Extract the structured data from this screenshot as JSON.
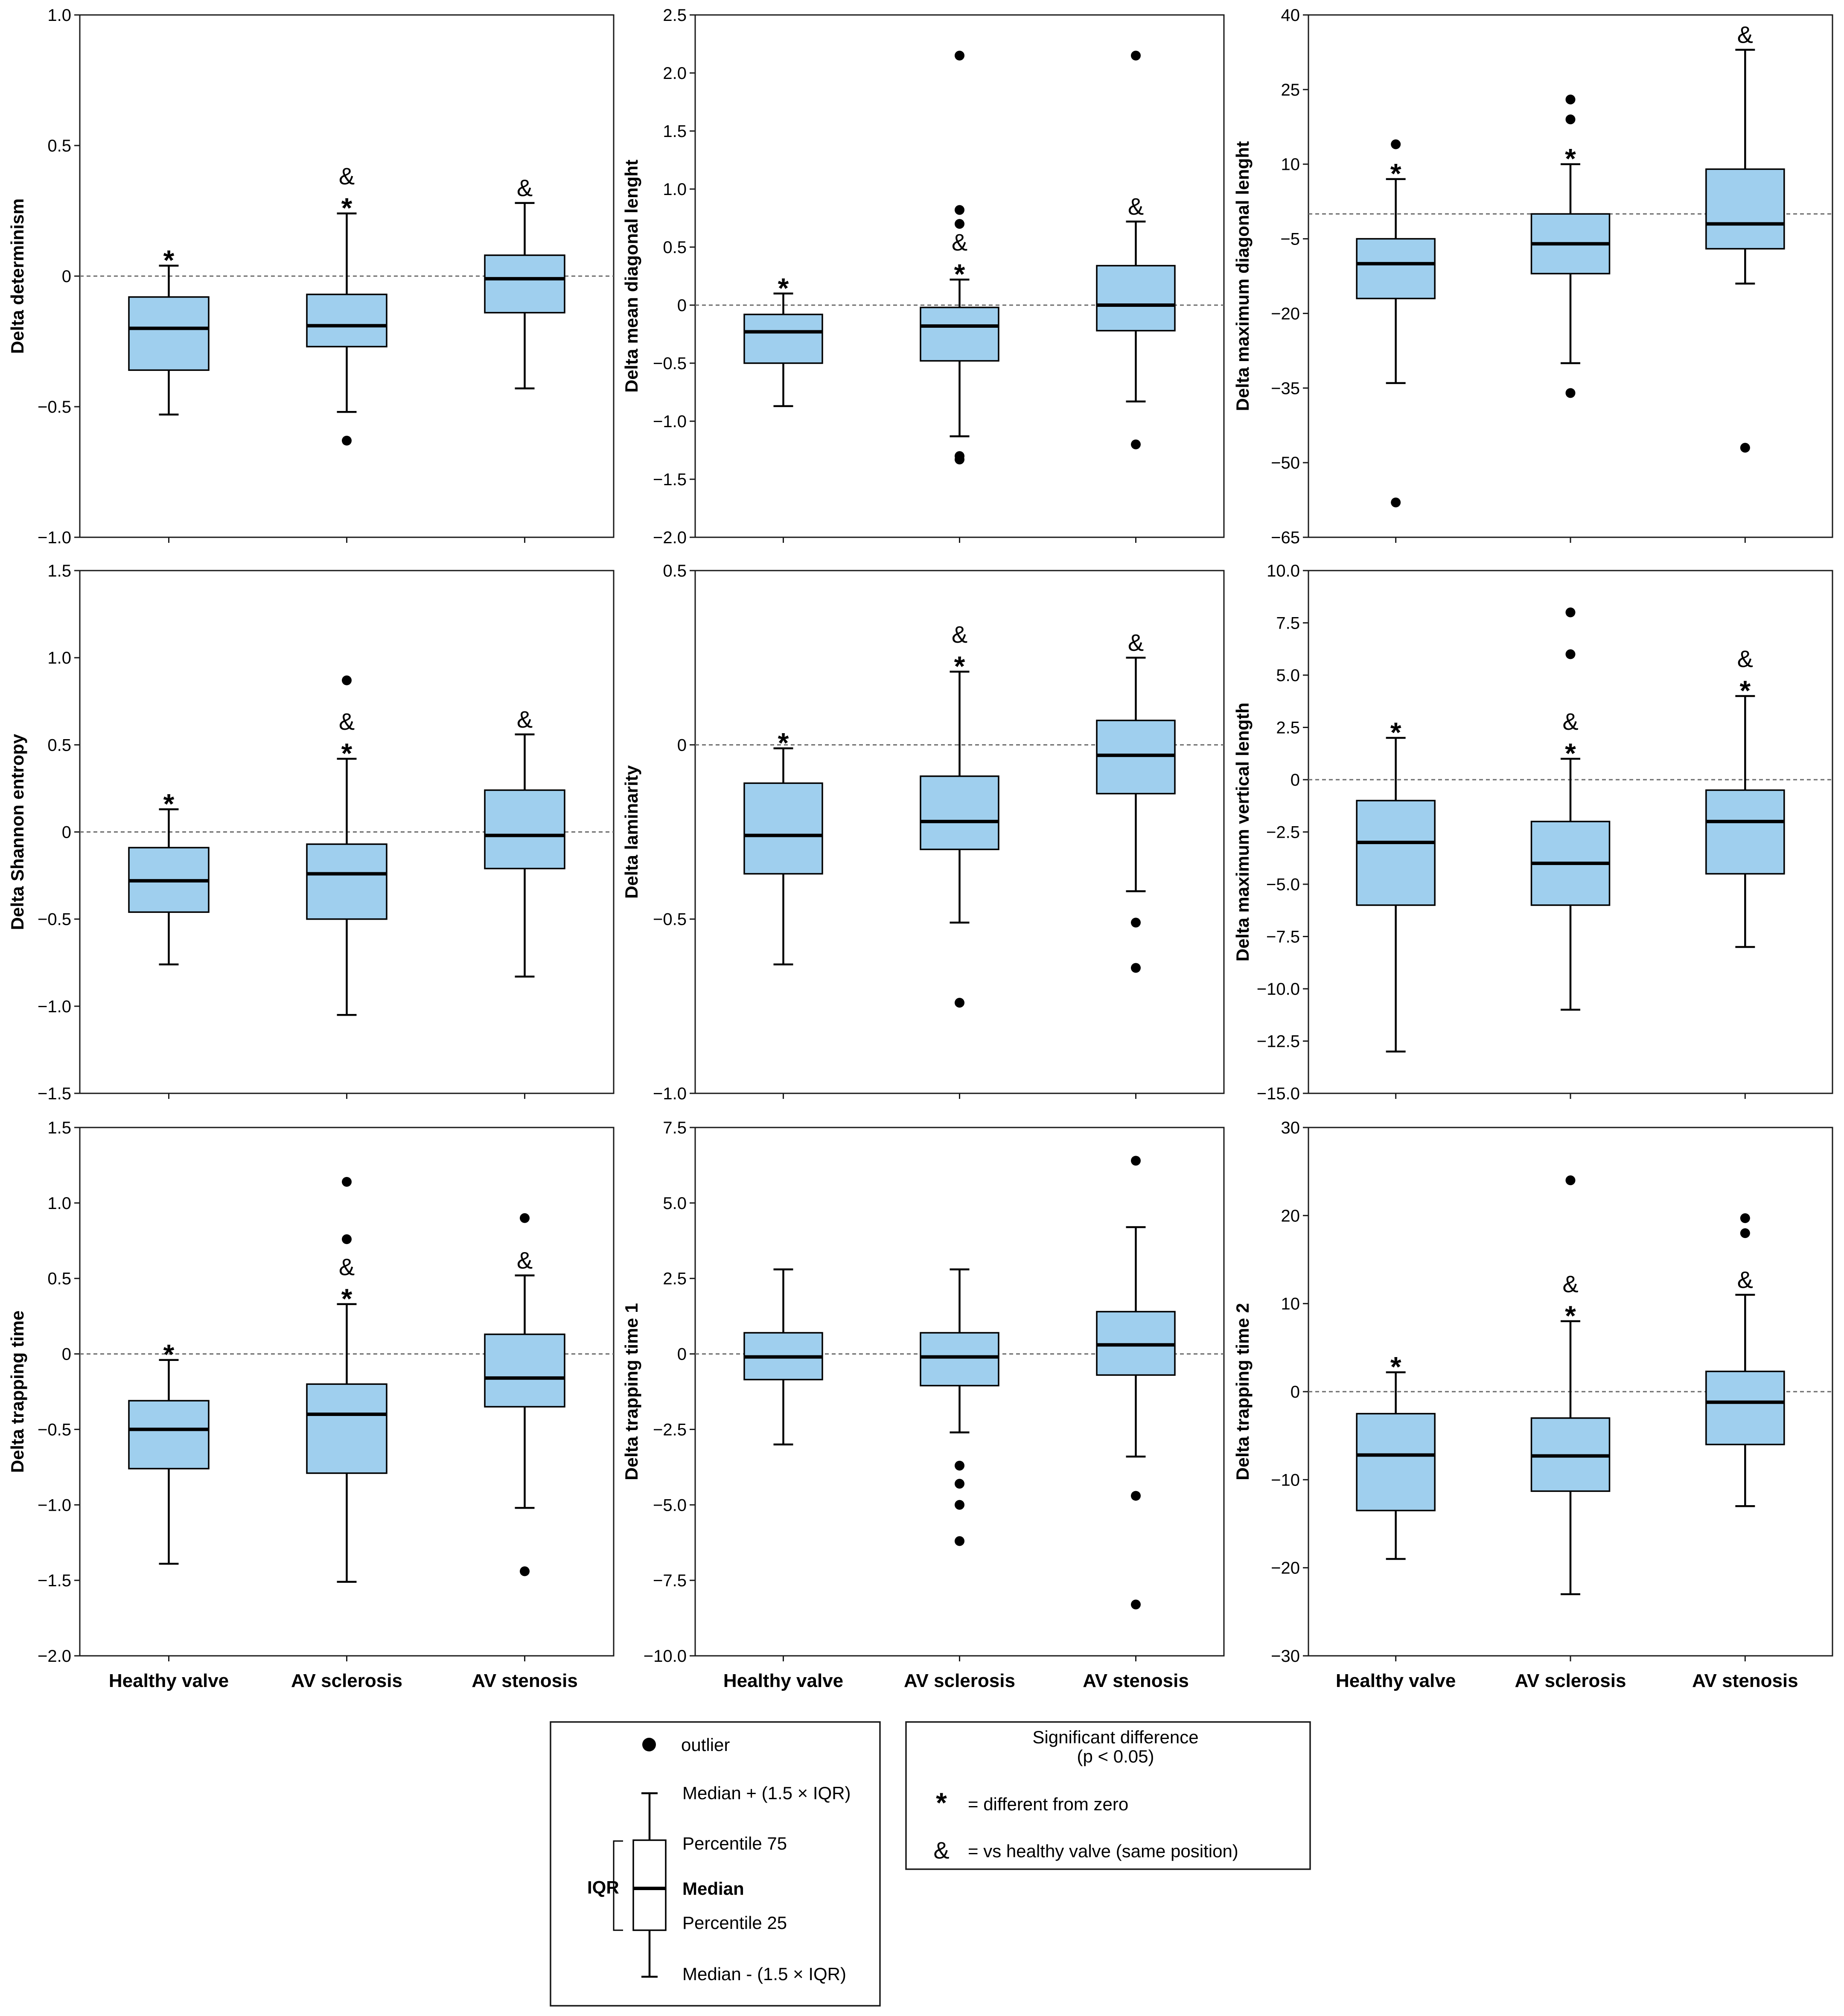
{
  "chart_data": [
    {
      "type": "boxplot",
      "ylabel": "Delta determinism",
      "ylim": [
        -1.0,
        1.0
      ],
      "yticks": [
        -1.0,
        -0.5,
        0,
        0.5,
        1.0
      ],
      "ytick_labels": [
        "−1.0",
        "−0.5",
        "0",
        "0.5",
        "1.0"
      ],
      "categories": [
        "Healthy valve",
        "AV sclerosis",
        "AV stenosis"
      ],
      "series": [
        {
          "name": "Healthy valve",
          "whisker_low": -0.53,
          "q1": -0.36,
          "median": -0.2,
          "q3": -0.08,
          "whisker_high": 0.04,
          "outliers": [],
          "different_from_zero": true,
          "vs_healthy": false
        },
        {
          "name": "AV sclerosis",
          "whisker_low": -0.52,
          "q1": -0.27,
          "median": -0.19,
          "q3": -0.07,
          "whisker_high": 0.24,
          "outliers": [
            -0.63
          ],
          "different_from_zero": true,
          "vs_healthy": true
        },
        {
          "name": "AV stenosis",
          "whisker_low": -0.43,
          "q1": -0.14,
          "median": -0.01,
          "q3": 0.08,
          "whisker_high": 0.28,
          "outliers": [],
          "different_from_zero": false,
          "vs_healthy": true
        }
      ]
    },
    {
      "type": "boxplot",
      "ylabel": "Delta mean diagonal lenght",
      "ylim": [
        -2.0,
        2.5
      ],
      "yticks": [
        -2.0,
        -1.5,
        -1.0,
        -0.5,
        0,
        0.5,
        1.0,
        1.5,
        2.0,
        2.5
      ],
      "ytick_labels": [
        "−2.0",
        "−1.5",
        "−1.0",
        "−0.5",
        "0",
        "0.5",
        "1.0",
        "1.5",
        "2.0",
        "2.5"
      ],
      "categories": [
        "Healthy valve",
        "AV sclerosis",
        "AV stenosis"
      ],
      "series": [
        {
          "name": "Healthy valve",
          "whisker_low": -0.87,
          "q1": -0.5,
          "median": -0.23,
          "q3": -0.08,
          "whisker_high": 0.1,
          "outliers": [],
          "different_from_zero": true,
          "vs_healthy": false
        },
        {
          "name": "AV sclerosis",
          "whisker_low": -1.13,
          "q1": -0.48,
          "median": -0.18,
          "q3": -0.02,
          "whisker_high": 0.22,
          "outliers": [
            -1.3,
            -1.33,
            0.7,
            0.82,
            2.15
          ],
          "different_from_zero": true,
          "vs_healthy": true
        },
        {
          "name": "AV stenosis",
          "whisker_low": -0.83,
          "q1": -0.22,
          "median": 0.0,
          "q3": 0.34,
          "whisker_high": 0.72,
          "outliers": [
            -1.2,
            2.15
          ],
          "different_from_zero": false,
          "vs_healthy": true
        }
      ]
    },
    {
      "type": "boxplot",
      "ylabel": "Delta maximum diagonal lenght",
      "ylim": [
        -65,
        40
      ],
      "yticks": [
        -65,
        -50,
        -35,
        -20,
        -5,
        10,
        25,
        40
      ],
      "ytick_labels": [
        "−65",
        "−50",
        "−35",
        "−20",
        "−5",
        "10",
        "25",
        "40"
      ],
      "categories": [
        "Healthy valve",
        "AV sclerosis",
        "AV stenosis"
      ],
      "series": [
        {
          "name": "Healthy valve",
          "whisker_low": -34,
          "q1": -17,
          "median": -10,
          "q3": -5,
          "whisker_high": 7,
          "outliers": [
            14,
            -58
          ],
          "different_from_zero": true,
          "vs_healthy": false
        },
        {
          "name": "AV sclerosis",
          "whisker_low": -30,
          "q1": -12,
          "median": -6,
          "q3": 0,
          "whisker_high": 10,
          "outliers": [
            19,
            23,
            -36
          ],
          "different_from_zero": true,
          "vs_healthy": false
        },
        {
          "name": "AV stenosis",
          "whisker_low": -14,
          "q1": -7,
          "median": -2,
          "q3": 9,
          "whisker_high": 33,
          "outliers": [
            -47
          ],
          "different_from_zero": false,
          "vs_healthy": true
        }
      ]
    },
    {
      "type": "boxplot",
      "ylabel": "Delta Shannon entropy",
      "ylim": [
        -1.5,
        1.5
      ],
      "yticks": [
        -1.5,
        -1.0,
        -0.5,
        0,
        0.5,
        1.0,
        1.5
      ],
      "ytick_labels": [
        "−1.5",
        "−1.0",
        "−0.5",
        "0",
        "0.5",
        "1.0",
        "1.5"
      ],
      "categories": [
        "Healthy valve",
        "AV sclerosis",
        "AV stenosis"
      ],
      "series": [
        {
          "name": "Healthy valve",
          "whisker_low": -0.76,
          "q1": -0.46,
          "median": -0.28,
          "q3": -0.09,
          "whisker_high": 0.13,
          "outliers": [],
          "different_from_zero": true,
          "vs_healthy": false
        },
        {
          "name": "AV sclerosis",
          "whisker_low": -1.05,
          "q1": -0.5,
          "median": -0.24,
          "q3": -0.07,
          "whisker_high": 0.42,
          "outliers": [
            0.87
          ],
          "different_from_zero": true,
          "vs_healthy": true
        },
        {
          "name": "AV stenosis",
          "whisker_low": -0.83,
          "q1": -0.21,
          "median": -0.02,
          "q3": 0.24,
          "whisker_high": 0.56,
          "outliers": [],
          "different_from_zero": false,
          "vs_healthy": true
        }
      ]
    },
    {
      "type": "boxplot",
      "ylabel": "Delta laminarity",
      "ylim": [
        -1.0,
        0.5
      ],
      "yticks": [
        -1.0,
        -0.5,
        0,
        0.5
      ],
      "ytick_labels": [
        "−1.0",
        "−0.5",
        "0",
        "0.5"
      ],
      "categories": [
        "Healthy valve",
        "AV sclerosis",
        "AV stenosis"
      ],
      "series": [
        {
          "name": "Healthy valve",
          "whisker_low": -0.63,
          "q1": -0.37,
          "median": -0.26,
          "q3": -0.11,
          "whisker_high": -0.01,
          "outliers": [],
          "different_from_zero": true,
          "vs_healthy": false
        },
        {
          "name": "AV sclerosis",
          "whisker_low": -0.51,
          "q1": -0.3,
          "median": -0.22,
          "q3": -0.09,
          "whisker_high": 0.21,
          "outliers": [
            -0.74
          ],
          "different_from_zero": true,
          "vs_healthy": true
        },
        {
          "name": "AV stenosis",
          "whisker_low": -0.42,
          "q1": -0.14,
          "median": -0.03,
          "q3": 0.07,
          "whisker_high": 0.25,
          "outliers": [
            -0.51,
            -0.64
          ],
          "different_from_zero": false,
          "vs_healthy": true
        }
      ]
    },
    {
      "type": "boxplot",
      "ylabel": "Delta maximum vertical length",
      "ylim": [
        -15.0,
        10.0
      ],
      "yticks": [
        -15.0,
        -12.5,
        -10.0,
        -7.5,
        -5.0,
        -2.5,
        0,
        2.5,
        5.0,
        7.5,
        10.0
      ],
      "ytick_labels": [
        "−15.0",
        "−12.5",
        "−10.0",
        "−7.5",
        "−5.0",
        "−2.5",
        "0",
        "2.5",
        "5.0",
        "7.5",
        "10.0"
      ],
      "categories": [
        "Healthy valve",
        "AV sclerosis",
        "AV stenosis"
      ],
      "series": [
        {
          "name": "Healthy valve",
          "whisker_low": -13,
          "q1": -6,
          "median": -3,
          "q3": -1,
          "whisker_high": 2,
          "outliers": [],
          "different_from_zero": true,
          "vs_healthy": false
        },
        {
          "name": "AV sclerosis",
          "whisker_low": -11,
          "q1": -6,
          "median": -4,
          "q3": -2,
          "whisker_high": 1,
          "outliers": [
            6,
            8
          ],
          "different_from_zero": true,
          "vs_healthy": true
        },
        {
          "name": "AV stenosis",
          "whisker_low": -8,
          "q1": -4.5,
          "median": -2,
          "q3": -0.5,
          "whisker_high": 4,
          "outliers": [],
          "different_from_zero": true,
          "vs_healthy": true
        }
      ]
    },
    {
      "type": "boxplot",
      "ylabel": "Delta trapping time",
      "ylim": [
        -2.0,
        1.5
      ],
      "yticks": [
        -2.0,
        -1.5,
        -1.0,
        -0.5,
        0,
        0.5,
        1.0,
        1.5
      ],
      "ytick_labels": [
        "−2.0",
        "−1.5",
        "−1.0",
        "−0.5",
        "0",
        "0.5",
        "1.0",
        "1.5"
      ],
      "categories": [
        "Healthy valve",
        "AV sclerosis",
        "AV stenosis"
      ],
      "series": [
        {
          "name": "Healthy valve",
          "whisker_low": -1.39,
          "q1": -0.76,
          "median": -0.5,
          "q3": -0.31,
          "whisker_high": -0.04,
          "outliers": [],
          "different_from_zero": true,
          "vs_healthy": false
        },
        {
          "name": "AV sclerosis",
          "whisker_low": -1.51,
          "q1": -0.79,
          "median": -0.4,
          "q3": -0.2,
          "whisker_high": 0.33,
          "outliers": [
            0.76,
            1.14
          ],
          "different_from_zero": true,
          "vs_healthy": true
        },
        {
          "name": "AV stenosis",
          "whisker_low": -1.02,
          "q1": -0.35,
          "median": -0.16,
          "q3": 0.13,
          "whisker_high": 0.52,
          "outliers": [
            0.9,
            -1.44
          ],
          "different_from_zero": false,
          "vs_healthy": true
        }
      ]
    },
    {
      "type": "boxplot",
      "ylabel": "Delta trapping time 1",
      "ylim": [
        -10.0,
        7.5
      ],
      "yticks": [
        -10.0,
        -7.5,
        -5.0,
        -2.5,
        0,
        2.5,
        5.0,
        7.5
      ],
      "ytick_labels": [
        "−10.0",
        "−7.5",
        "−5.0",
        "−2.5",
        "0",
        "2.5",
        "5.0",
        "7.5"
      ],
      "categories": [
        "Healthy valve",
        "AV sclerosis",
        "AV stenosis"
      ],
      "series": [
        {
          "name": "Healthy valve",
          "whisker_low": -3.0,
          "q1": -0.85,
          "median": -0.1,
          "q3": 0.7,
          "whisker_high": 2.8,
          "outliers": [],
          "different_from_zero": false,
          "vs_healthy": false
        },
        {
          "name": "AV sclerosis",
          "whisker_low": -2.6,
          "q1": -1.05,
          "median": -0.1,
          "q3": 0.7,
          "whisker_high": 2.8,
          "outliers": [
            -3.7,
            -4.3,
            -5.0,
            -6.2
          ],
          "different_from_zero": false,
          "vs_healthy": false
        },
        {
          "name": "AV stenosis",
          "whisker_low": -3.4,
          "q1": -0.7,
          "median": 0.3,
          "q3": 1.4,
          "whisker_high": 4.2,
          "outliers": [
            6.4,
            -4.7,
            -8.3
          ],
          "different_from_zero": false,
          "vs_healthy": false
        }
      ]
    },
    {
      "type": "boxplot",
      "ylabel": "Delta trapping time 2",
      "ylim": [
        -30,
        30
      ],
      "yticks": [
        -30,
        -20,
        -10,
        0,
        10,
        20,
        30
      ],
      "ytick_labels": [
        "−30",
        "−20",
        "−10",
        "0",
        "10",
        "20",
        "30"
      ],
      "categories": [
        "Healthy valve",
        "AV sclerosis",
        "AV stenosis"
      ],
      "series": [
        {
          "name": "Healthy valve",
          "whisker_low": -19,
          "q1": -13.5,
          "median": -7.2,
          "q3": -2.5,
          "whisker_high": 2.2,
          "outliers": [],
          "different_from_zero": true,
          "vs_healthy": false
        },
        {
          "name": "AV sclerosis",
          "whisker_low": -23,
          "q1": -11.3,
          "median": -7.3,
          "q3": -3,
          "whisker_high": 8,
          "outliers": [
            24
          ],
          "different_from_zero": true,
          "vs_healthy": true
        },
        {
          "name": "AV stenosis",
          "whisker_low": -13,
          "q1": -6,
          "median": -1.2,
          "q3": 2.3,
          "whisker_high": 11,
          "outliers": [
            18,
            19.7
          ],
          "different_from_zero": false,
          "vs_healthy": true
        }
      ]
    }
  ],
  "symbols": {
    "star": "*",
    "amp": "&"
  },
  "legend_left": {
    "outlier": "outlier",
    "upper_whisker": "Median + (1.5 × IQR)",
    "p75": "Percentile 75",
    "median": "Median",
    "p25": "Percentile 25",
    "lower_whisker": "Median - (1.5 × IQR)",
    "iqr": "IQR"
  },
  "legend_right": {
    "title_line1": "Significant difference",
    "title_line2": "(p < 0.05)",
    "star_text": "= different from zero",
    "amp_text": "= vs healthy valve (same position)"
  },
  "colors": {
    "box_fill": "#9fcfee",
    "line": "#000000",
    "zero_line": "#6b6b6b"
  }
}
